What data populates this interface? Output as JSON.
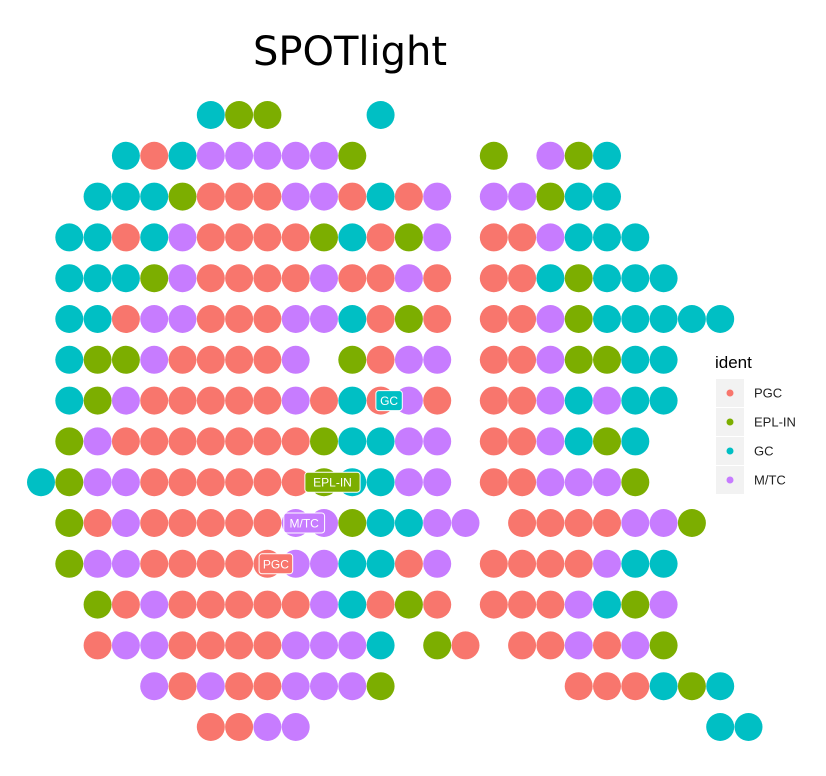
{
  "chart_data": {
    "type": "scatter",
    "title": "SPOTlight",
    "xlabel": "",
    "ylabel": "",
    "legend": {
      "title": "ident",
      "position": "right",
      "entries": [
        {
          "key": "PGC",
          "label": "PGC",
          "color": "#F8766D"
        },
        {
          "key": "EPL-IN",
          "label": "EPL-IN",
          "color": "#7CAE00"
        },
        {
          "key": "GC",
          "label": "GC",
          "color": "#00BFC4"
        },
        {
          "key": "M/TC",
          "label": "M/TC",
          "color": "#C77CFF"
        }
      ]
    },
    "cluster_labels": [
      {
        "label": "GC",
        "color": "#00BFC4",
        "x": 12.3,
        "y": 7
      },
      {
        "label": "EPL-IN",
        "color": "#7CAE00",
        "x": 10.3,
        "y": 9
      },
      {
        "label": "M/TC",
        "color": "#C77CFF",
        "x": 9.3,
        "y": 10
      },
      {
        "label": "PGC",
        "color": "#F8766D",
        "x": 8.3,
        "y": 11
      }
    ],
    "grid": false,
    "rows": [
      {
        "y": 0,
        "x0": 6,
        "cells": "GEE...G"
      },
      {
        "y": 1,
        "x0": 3,
        "cells": "GPGMMMMME....E.MEG"
      },
      {
        "y": 2,
        "x0": 2,
        "cells": "GGGEPPPMMPGPM.MMEGG"
      },
      {
        "y": 3,
        "x0": 1,
        "cells": "GGPGMPPPPEGPEM.PPMGGG"
      },
      {
        "y": 4,
        "x0": 1,
        "cells": "GGGEMPPPPMPPMP.PPGEGGG"
      },
      {
        "y": 5,
        "x0": 1,
        "cells": "GGPMMPPPMMGPEP.PPMEGGGGG"
      },
      {
        "y": 6,
        "x0": 1,
        "cells": "GEEMPPPPM.EPMM.PPMEEGG"
      },
      {
        "y": 7,
        "x0": 1,
        "cells": "GEMPPPPPMPGPMP.PPMGMGG"
      },
      {
        "y": 8,
        "x0": 1,
        "cells": "EMPPPPPPPEGGMM.PPMGEG"
      },
      {
        "y": 9,
        "x0": 0,
        "cells": "GEMMPPPPPPEGGMM.PPMMME"
      },
      {
        "y": 10,
        "x0": 1,
        "cells": "EPMPPPPPMMEGGMM.PPPPMME"
      },
      {
        "y": 11,
        "x0": 1,
        "cells": "EMMPPPPPMMGGPM.PPPPMGG"
      },
      {
        "y": 12,
        "x0": 2,
        "cells": "EPMPPPPPMGPEP.PPPMGEM"
      },
      {
        "y": 13,
        "x0": 2,
        "cells": "PMMPPPPMMMG.EP.PPMPME"
      },
      {
        "y": 14,
        "x0": 4,
        "cells": "MPMPPMMME......PPPGEG"
      },
      {
        "y": 15,
        "x0": 6,
        "cells": "PPMM..............GG"
      }
    ]
  }
}
